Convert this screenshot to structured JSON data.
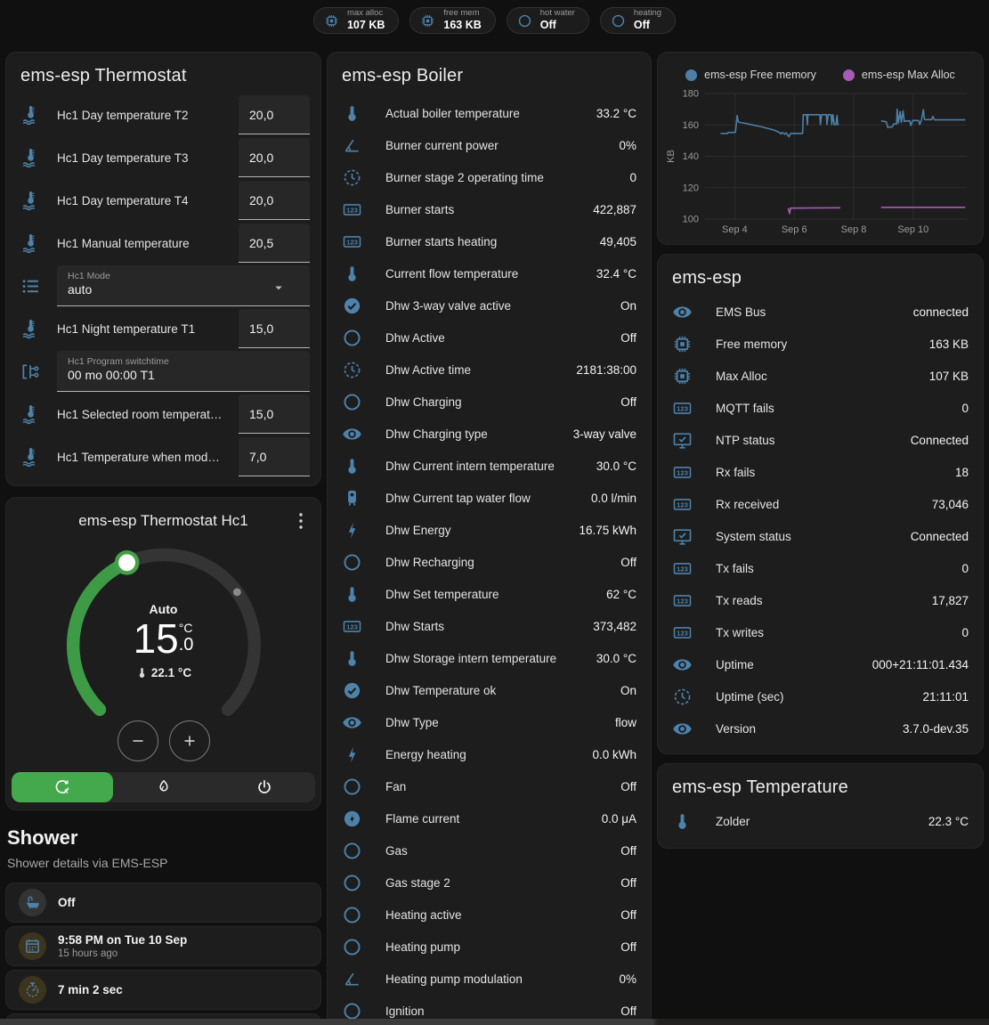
{
  "theme": {
    "accent_green": "#44a94d",
    "icon_blue": "#4d82ab",
    "badge_chip_blue": "#41a0d8",
    "amber": "#e2b01c"
  },
  "topbar": {
    "badges": [
      {
        "icon": "chip",
        "tone": "blue",
        "label": "max alloc",
        "value": "107 KB"
      },
      {
        "icon": "chip",
        "tone": "blue",
        "label": "free mem",
        "value": "163 KB"
      },
      {
        "icon": "circle",
        "tone": "gray",
        "label": "hot water",
        "value": "Off"
      },
      {
        "icon": "circle",
        "tone": "gray",
        "label": "heating",
        "value": "Off"
      }
    ]
  },
  "thermostat_card": {
    "title": "ems-esp Thermostat",
    "rows": [
      {
        "type": "number",
        "icon": "thermometer-water",
        "label": "Hc1 Day temperature T2",
        "value": "20,0"
      },
      {
        "type": "number",
        "icon": "thermometer-water",
        "label": "Hc1 Day temperature T3",
        "value": "20,0"
      },
      {
        "type": "number",
        "icon": "thermometer-water",
        "label": "Hc1 Day temperature T4",
        "value": "20,0"
      },
      {
        "type": "number",
        "icon": "thermometer-water",
        "label": "Hc1 Manual temperature",
        "value": "20,5"
      },
      {
        "type": "select",
        "icon": "format-list",
        "label": "Hc1 Mode",
        "value": "auto"
      },
      {
        "type": "number",
        "icon": "thermometer-water",
        "label": "Hc1 Night temperature T1",
        "value": "15,0"
      },
      {
        "type": "text",
        "icon": "state-machine",
        "label": "Hc1 Program switchtime",
        "value": "00 mo 00:00 T1"
      },
      {
        "type": "number",
        "icon": "thermometer-water",
        "label": "Hc1 Selected room temperat…",
        "value": "15,0"
      },
      {
        "type": "number",
        "icon": "thermometer-water",
        "label": "Hc1 Temperature when mod…",
        "value": "7,0"
      }
    ]
  },
  "hc1_card": {
    "title": "ems-esp Thermostat Hc1",
    "mode_label": "Auto",
    "target_whole": "15",
    "target_unit": "°C",
    "target_decimal": ".0",
    "current_temp": "22.1 °C",
    "modes": [
      {
        "icon": "auto-mode",
        "active": true
      },
      {
        "icon": "flame",
        "active": false
      },
      {
        "icon": "power",
        "active": false
      }
    ]
  },
  "shower": {
    "title": "Shower",
    "subtitle": "Shower details via EMS-ESP",
    "tiles": [
      {
        "icon": "bathtub",
        "tone": "gray",
        "value": "Off",
        "secondary": ""
      },
      {
        "icon": "calendar",
        "tone": "amber",
        "value": "9:58 PM on Tue 10 Sep",
        "secondary": "15 hours ago"
      },
      {
        "icon": "timer",
        "tone": "amber",
        "value": "7 min 2 sec",
        "secondary": ""
      },
      {
        "icon": "snowflake-alert",
        "tone": "plain",
        "value": "",
        "secondary": ""
      }
    ]
  },
  "boiler_card": {
    "title": "ems-esp Boiler",
    "rows": [
      {
        "icon": "thermometer",
        "label": "Actual boiler temperature",
        "value": "33.2 °C"
      },
      {
        "icon": "angle",
        "label": "Burner current power",
        "value": "0%"
      },
      {
        "icon": "clock",
        "label": "Burner stage 2 operating time",
        "value": "0"
      },
      {
        "icon": "counter",
        "label": "Burner starts",
        "value": "422,887"
      },
      {
        "icon": "counter",
        "label": "Burner starts heating",
        "value": "49,405"
      },
      {
        "icon": "thermometer",
        "label": "Current flow temperature",
        "value": "32.4 °C"
      },
      {
        "icon": "check-circle",
        "label": "Dhw 3-way valve active",
        "value": "On"
      },
      {
        "icon": "circle",
        "label": "Dhw Active",
        "value": "Off"
      },
      {
        "icon": "clock",
        "label": "Dhw Active time",
        "value": "2181:38:00"
      },
      {
        "icon": "circle",
        "label": "Dhw Charging",
        "value": "Off"
      },
      {
        "icon": "eye",
        "label": "Dhw Charging type",
        "value": "3-way valve"
      },
      {
        "icon": "thermometer",
        "label": "Dhw Current intern temperature",
        "value": "30.0 °C"
      },
      {
        "icon": "water-boiler",
        "label": "Dhw Current tap water flow",
        "value": "0.0 l/min"
      },
      {
        "icon": "lightning",
        "label": "Dhw Energy",
        "value": "16.75 kWh"
      },
      {
        "icon": "circle",
        "label": "Dhw Recharging",
        "value": "Off"
      },
      {
        "icon": "thermometer",
        "label": "Dhw Set temperature",
        "value": "62 °C"
      },
      {
        "icon": "counter",
        "label": "Dhw Starts",
        "value": "373,482"
      },
      {
        "icon": "thermometer",
        "label": "Dhw Storage intern temperature",
        "value": "30.0 °C"
      },
      {
        "icon": "check-circle",
        "label": "Dhw Temperature ok",
        "value": "On"
      },
      {
        "icon": "eye",
        "label": "Dhw Type",
        "value": "flow"
      },
      {
        "icon": "lightning",
        "label": "Energy heating",
        "value": "0.0 kWh"
      },
      {
        "icon": "circle",
        "label": "Fan",
        "value": "Off"
      },
      {
        "icon": "lightning-circle",
        "label": "Flame current",
        "value": "0.0 μA"
      },
      {
        "icon": "circle",
        "label": "Gas",
        "value": "Off"
      },
      {
        "icon": "circle",
        "label": "Gas stage 2",
        "value": "Off"
      },
      {
        "icon": "circle",
        "label": "Heating active",
        "value": "Off"
      },
      {
        "icon": "circle",
        "label": "Heating pump",
        "value": "Off"
      },
      {
        "icon": "angle",
        "label": "Heating pump modulation",
        "value": "0%"
      },
      {
        "icon": "circle",
        "label": "Ignition",
        "value": "Off"
      }
    ]
  },
  "emsesp_card": {
    "title": "ems-esp",
    "rows": [
      {
        "icon": "eye",
        "label": "EMS Bus",
        "value": "connected"
      },
      {
        "icon": "chip",
        "label": "Free memory",
        "value": "163 KB"
      },
      {
        "icon": "chip",
        "label": "Max Alloc",
        "value": "107 KB"
      },
      {
        "icon": "counter",
        "label": "MQTT fails",
        "value": "0"
      },
      {
        "icon": "monitor-check",
        "label": "NTP status",
        "value": "Connected"
      },
      {
        "icon": "counter",
        "label": "Rx fails",
        "value": "18"
      },
      {
        "icon": "counter",
        "label": "Rx received",
        "value": "73,046"
      },
      {
        "icon": "monitor-check",
        "label": "System status",
        "value": "Connected"
      },
      {
        "icon": "counter",
        "label": "Tx fails",
        "value": "0"
      },
      {
        "icon": "counter",
        "label": "Tx reads",
        "value": "17,827"
      },
      {
        "icon": "counter",
        "label": "Tx writes",
        "value": "0"
      },
      {
        "icon": "eye",
        "label": "Uptime",
        "value": "000+21:11:01.434"
      },
      {
        "icon": "clock",
        "label": "Uptime (sec)",
        "value": "21:11:01"
      },
      {
        "icon": "eye",
        "label": "Version",
        "value": "3.7.0-dev.35"
      }
    ]
  },
  "temperature_card": {
    "title": "ems-esp Temperature",
    "rows": [
      {
        "icon": "thermometer",
        "label": "Zolder",
        "value": "22.3 °C"
      }
    ]
  },
  "chart_data": {
    "type": "line",
    "title": "",
    "xlabel": "",
    "ylabel": "KB",
    "ylim": [
      95,
      185
    ],
    "yticks": [
      100,
      120,
      140,
      160,
      180
    ],
    "xtick_days": [
      4,
      6,
      8,
      10
    ],
    "xtick_labels": [
      "Sep 4",
      "Sep 6",
      "Sep 8",
      "Sep 10"
    ],
    "xlim_days": [
      3.0,
      11.8
    ],
    "grid": true,
    "legend_position": "top",
    "series": [
      {
        "name": "ems-esp Free memory",
        "color": "#4d7fa6",
        "segments": [
          [
            [
              3.52,
              154.5
            ],
            [
              3.75,
              154.5
            ],
            [
              3.78,
              155.2
            ],
            [
              4.02,
              155.2
            ],
            [
              4.08,
              166
            ],
            [
              4.12,
              161.8
            ],
            [
              4.35,
              161
            ],
            [
              4.6,
              160
            ],
            [
              4.85,
              159
            ],
            [
              5.1,
              157.8
            ],
            [
              5.35,
              156.5
            ],
            [
              5.5,
              155.2
            ],
            [
              5.55,
              154.2
            ],
            [
              5.6,
              155.2
            ],
            [
              5.68,
              154
            ],
            [
              5.72,
              155
            ],
            [
              5.82,
              152.5
            ],
            [
              5.88,
              154.6
            ],
            [
              6.28,
              154.6
            ],
            [
              6.3,
              166.5
            ],
            [
              6.42,
              166.5
            ],
            [
              6.44,
              160.2
            ],
            [
              6.46,
              166.5
            ],
            [
              6.86,
              166.5
            ],
            [
              6.88,
              160.2
            ],
            [
              6.92,
              166.5
            ],
            [
              7.08,
              166.5
            ],
            [
              7.1,
              160.2
            ],
            [
              7.14,
              166.5
            ],
            [
              7.24,
              166.5
            ],
            [
              7.26,
              160.2
            ],
            [
              7.3,
              166.5
            ],
            [
              7.34,
              160.2
            ],
            [
              7.4,
              160.2
            ],
            [
              7.44,
              166
            ],
            [
              7.46,
              160.2
            ],
            [
              7.5,
              160.2
            ]
          ],
          [
            [
              8.92,
              162.5
            ],
            [
              9.05,
              162.2
            ],
            [
              9.1,
              161.8
            ],
            [
              9.14,
              158.5
            ],
            [
              9.3,
              158.8
            ],
            [
              9.35,
              160.6
            ],
            [
              9.44,
              160.6
            ],
            [
              9.46,
              170
            ],
            [
              9.5,
              161.2
            ],
            [
              9.56,
              168.5
            ],
            [
              9.6,
              161.6
            ],
            [
              9.66,
              169
            ],
            [
              9.7,
              162.2
            ],
            [
              9.8,
              162.6
            ],
            [
              9.88,
              162.6
            ],
            [
              9.92,
              159.6
            ],
            [
              9.98,
              162.8
            ],
            [
              10.18,
              162.8
            ],
            [
              10.22,
              160.2
            ],
            [
              10.28,
              163.2
            ],
            [
              10.34,
              169.8
            ],
            [
              10.38,
              163.4
            ],
            [
              10.62,
              163.4
            ],
            [
              10.66,
              165.4
            ],
            [
              10.72,
              163.2
            ],
            [
              11.1,
              163.2
            ],
            [
              11.75,
              163.2
            ]
          ]
        ]
      },
      {
        "name": "ems-esp Max Alloc",
        "color": "#a55cb5",
        "segments": [
          [
            [
              5.8,
              107
            ],
            [
              5.84,
              103.5
            ],
            [
              5.88,
              107
            ],
            [
              7.55,
              107.2
            ]
          ],
          [
            [
              8.92,
              107.5
            ],
            [
              11.75,
              107.5
            ]
          ]
        ]
      }
    ]
  }
}
